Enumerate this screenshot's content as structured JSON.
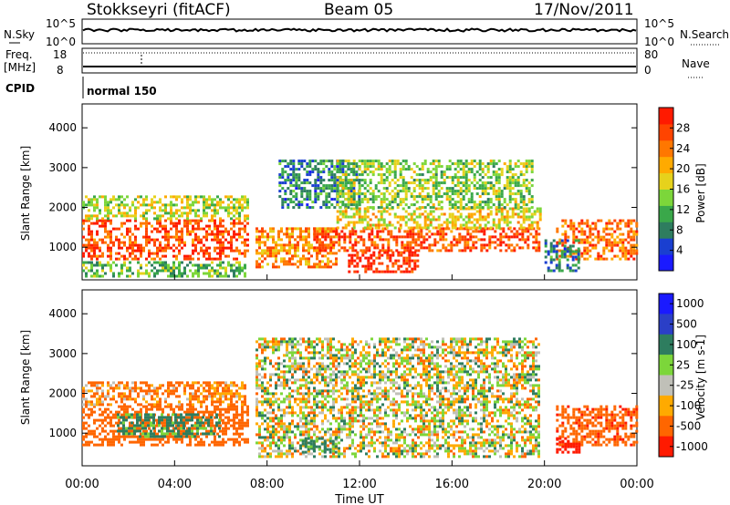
{
  "header": {
    "station": "Stokkseyri (fitACF)",
    "beam": "Beam 05",
    "date": "17/Nov/2011"
  },
  "noise_panel": {
    "left_label": "N.Sky",
    "left_ticks": [
      "10^5",
      "10^0"
    ],
    "right_ticks": [
      "10^5",
      "10^0"
    ],
    "right_label": "N.Search"
  },
  "freq_panel": {
    "left_label_1": "Freq.",
    "left_label_2": "[MHz]",
    "left_ticks": [
      "18",
      "8"
    ],
    "right_ticks": [
      "80",
      "0"
    ],
    "right_label": "Nave"
  },
  "cpid_panel": {
    "label": "CPID",
    "mode": "normal 150"
  },
  "chart_data": [
    {
      "type": "heatmap",
      "title": "",
      "xlabel": "Time UT",
      "ylabel": "Slant Range [km]",
      "x_ticks": [
        "00:00",
        "04:00",
        "08:00",
        "12:00",
        "16:00",
        "20:00",
        "00:00"
      ],
      "xlim_hours": [
        0,
        24
      ],
      "y_ticks": [
        "1000",
        "2000",
        "3000",
        "4000"
      ],
      "ylim": [
        180,
        4600
      ],
      "colorbar_label": "Power [dB]",
      "colorbar_ticks": [
        "4",
        "8",
        "12",
        "16",
        "20",
        "24",
        "28"
      ],
      "colorbar_colors": [
        "#1a1aff",
        "#1a3fd0",
        "#2e7d5f",
        "#3aa84a",
        "#7cd63a",
        "#e6d21c",
        "#ffaa00",
        "#ff7700",
        "#ff4400",
        "#ff1a00"
      ],
      "bands_note": "approximate echo regions (hour start, hour end, range low km, range high km, dominant power dB)",
      "bands": [
        {
          "t0": 0.0,
          "t1": 7.2,
          "r0": 700,
          "r1": 1700,
          "level": 26
        },
        {
          "t0": 0.0,
          "t1": 7.2,
          "r0": 1700,
          "r1": 2300,
          "level": 16
        },
        {
          "t0": 0.0,
          "t1": 7.0,
          "r0": 300,
          "r1": 650,
          "level": 12
        },
        {
          "t0": 7.5,
          "t1": 11.0,
          "r0": 500,
          "r1": 1500,
          "level": 22
        },
        {
          "t0": 8.5,
          "t1": 12.0,
          "r0": 2000,
          "r1": 3200,
          "level": 8
        },
        {
          "t0": 10.0,
          "t1": 19.8,
          "r0": 900,
          "r1": 1500,
          "level": 26
        },
        {
          "t0": 11.0,
          "t1": 19.8,
          "r0": 1500,
          "r1": 2000,
          "level": 18
        },
        {
          "t0": 11.5,
          "t1": 14.5,
          "r0": 400,
          "r1": 900,
          "level": 28
        },
        {
          "t0": 11.0,
          "t1": 19.5,
          "r0": 2000,
          "r1": 3200,
          "level": 14
        },
        {
          "t0": 20.5,
          "t1": 24.0,
          "r0": 700,
          "r1": 1700,
          "level": 24
        },
        {
          "t0": 20.0,
          "t1": 21.5,
          "r0": 400,
          "r1": 1200,
          "level": 8
        }
      ]
    },
    {
      "type": "heatmap",
      "title": "",
      "xlabel": "Time UT",
      "ylabel": "Slant Range [km]",
      "x_ticks": [
        "00:00",
        "04:00",
        "08:00",
        "12:00",
        "16:00",
        "20:00",
        "00:00"
      ],
      "xlim_hours": [
        0,
        24
      ],
      "y_ticks": [
        "1000",
        "2000",
        "3000",
        "4000"
      ],
      "ylim": [
        180,
        4600
      ],
      "colorbar_label": "Velocity [m s-1]",
      "colorbar_ticks": [
        "1000",
        "500",
        "100",
        "25",
        "-25",
        "-100",
        "-500",
        "-1000"
      ],
      "colorbar_colors": [
        "#1a1aff",
        "#2b3fc7",
        "#2e7d5f",
        "#7cd63a",
        "#c0c0b8",
        "#ffaa00",
        "#ff6600",
        "#ff1a00"
      ],
      "bands": [
        {
          "t0": 0.0,
          "t1": 7.2,
          "r0": 700,
          "r1": 1700,
          "level": -300
        },
        {
          "t0": 1.5,
          "t1": 6.0,
          "r0": 900,
          "r1": 1500,
          "level": 200
        },
        {
          "t0": 0.0,
          "t1": 7.0,
          "r0": 1700,
          "r1": 2300,
          "level": -150
        },
        {
          "t0": 7.5,
          "t1": 19.8,
          "r0": 400,
          "r1": 3400,
          "level": 0
        },
        {
          "t0": 9.5,
          "t1": 11.0,
          "r0": 500,
          "r1": 900,
          "level": 200
        },
        {
          "t0": 20.5,
          "t1": 24.0,
          "r0": 700,
          "r1": 1700,
          "level": -400
        },
        {
          "t0": 20.5,
          "t1": 21.5,
          "r0": 500,
          "r1": 900,
          "level": -800
        }
      ]
    }
  ]
}
